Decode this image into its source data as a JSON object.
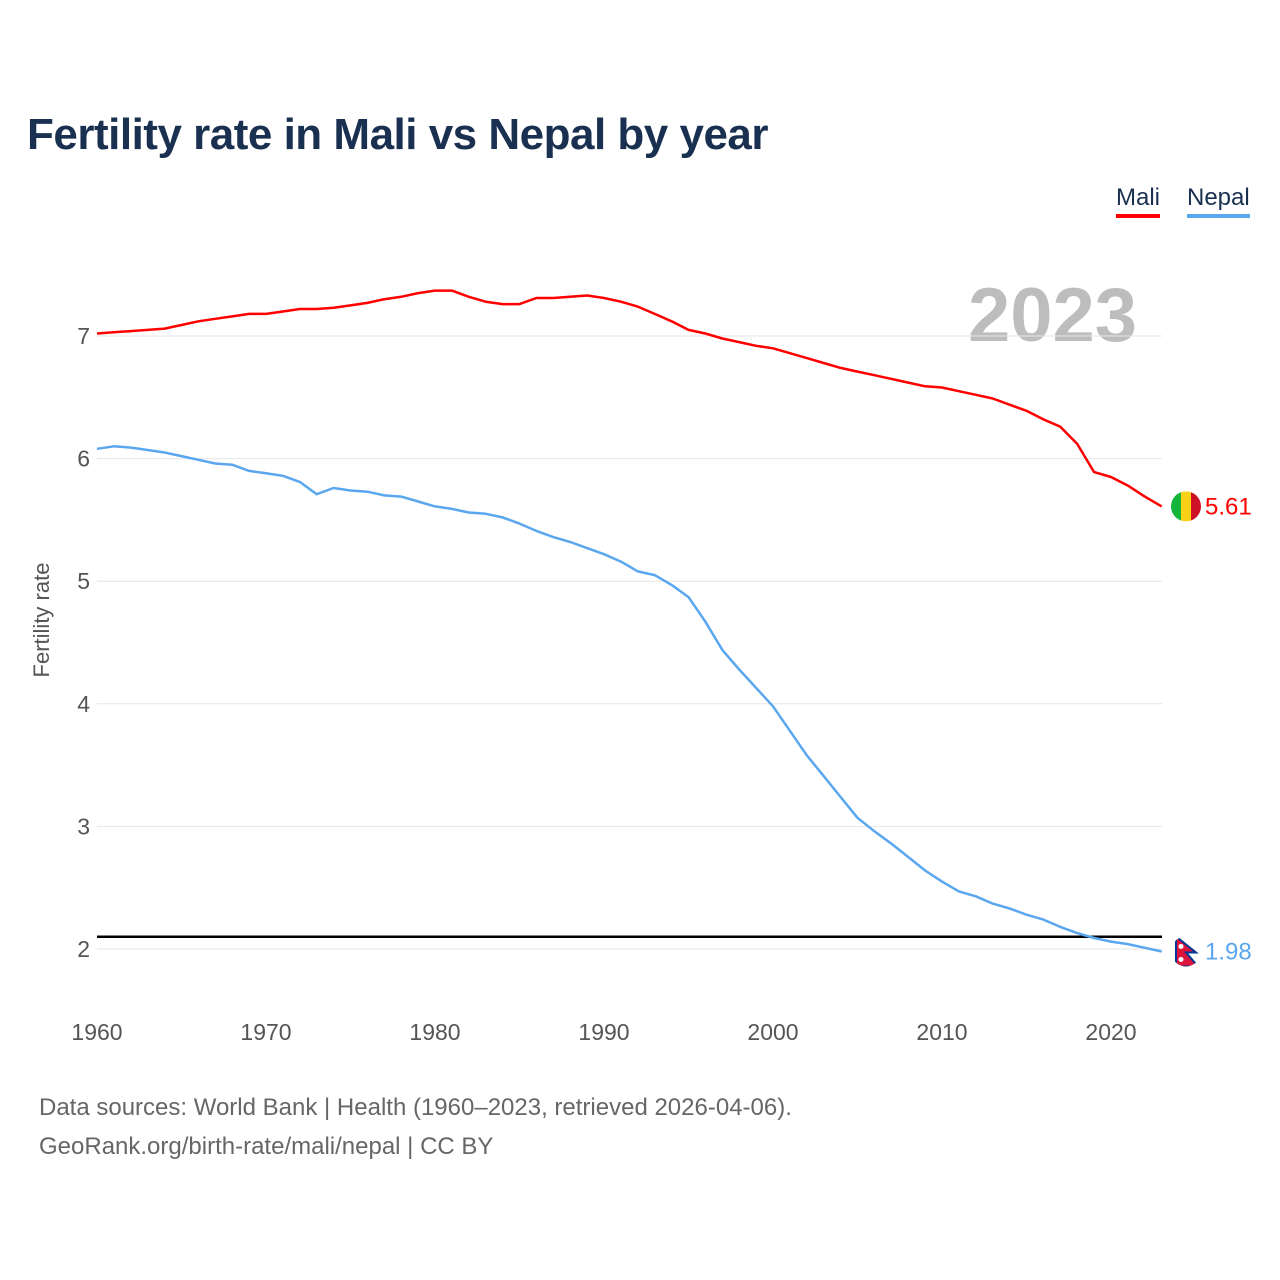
{
  "chart_data": {
    "type": "line",
    "title": "Fertility rate in Mali vs Nepal by year",
    "ylabel": "Fertility rate",
    "xlabel": "",
    "year_label": "2023",
    "xlim": [
      1960,
      2023
    ],
    "ylim": [
      1.5,
      7.5
    ],
    "xticks": [
      "1960",
      "1970",
      "1980",
      "1990",
      "2000",
      "2010",
      "2020"
    ],
    "yticks": [
      "2",
      "3",
      "4",
      "5",
      "6",
      "7"
    ],
    "grid": true,
    "legend_position": "top-right",
    "reference_line": 2.1,
    "x": [
      1960,
      1961,
      1962,
      1963,
      1964,
      1965,
      1966,
      1967,
      1968,
      1969,
      1970,
      1971,
      1972,
      1973,
      1974,
      1975,
      1976,
      1977,
      1978,
      1979,
      1980,
      1981,
      1982,
      1983,
      1984,
      1985,
      1986,
      1987,
      1988,
      1989,
      1990,
      1991,
      1992,
      1993,
      1994,
      1995,
      1996,
      1997,
      1998,
      1999,
      2000,
      2001,
      2002,
      2003,
      2004,
      2005,
      2006,
      2007,
      2008,
      2009,
      2010,
      2011,
      2012,
      2013,
      2014,
      2015,
      2016,
      2017,
      2018,
      2019,
      2020,
      2021,
      2022,
      2023
    ],
    "series": [
      {
        "name": "Mali",
        "color": "#ff0000",
        "end_label": "5.61",
        "values": [
          7.02,
          7.03,
          7.04,
          7.05,
          7.06,
          7.09,
          7.12,
          7.14,
          7.16,
          7.18,
          7.18,
          7.2,
          7.22,
          7.22,
          7.23,
          7.25,
          7.27,
          7.3,
          7.32,
          7.35,
          7.37,
          7.37,
          7.32,
          7.28,
          7.26,
          7.26,
          7.31,
          7.31,
          7.32,
          7.33,
          7.31,
          7.28,
          7.24,
          7.18,
          7.12,
          7.05,
          7.02,
          6.98,
          6.95,
          6.92,
          6.9,
          6.86,
          6.82,
          6.78,
          6.74,
          6.71,
          6.68,
          6.65,
          6.62,
          6.59,
          6.58,
          6.55,
          6.52,
          6.49,
          6.44,
          6.39,
          6.32,
          6.26,
          6.12,
          5.89,
          5.85,
          5.78,
          5.69,
          5.61
        ]
      },
      {
        "name": "Nepal",
        "color": "#5aa7ef",
        "end_label": "1.98",
        "values": [
          6.08,
          6.1,
          6.09,
          6.07,
          6.05,
          6.02,
          5.99,
          5.96,
          5.95,
          5.9,
          5.88,
          5.86,
          5.81,
          5.71,
          5.76,
          5.74,
          5.73,
          5.7,
          5.69,
          5.65,
          5.61,
          5.59,
          5.56,
          5.55,
          5.52,
          5.47,
          5.41,
          5.36,
          5.32,
          5.27,
          5.22,
          5.16,
          5.08,
          5.05,
          4.97,
          4.87,
          4.67,
          4.44,
          4.28,
          4.13,
          3.98,
          3.78,
          3.58,
          3.41,
          3.24,
          3.07,
          2.96,
          2.86,
          2.75,
          2.64,
          2.55,
          2.47,
          2.43,
          2.37,
          2.33,
          2.28,
          2.24,
          2.18,
          2.13,
          2.09,
          2.06,
          2.04,
          2.01,
          1.98
        ]
      }
    ]
  },
  "footer": {
    "line1": "Data sources: World Bank | Health (1960–2023, retrieved 2026-04-06).",
    "line2": "GeoRank.org/birth-rate/mali/nepal | CC BY"
  }
}
